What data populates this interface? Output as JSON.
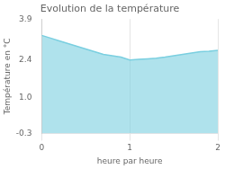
{
  "chart_data": {
    "type": "area",
    "title": "Evolution de la température",
    "x_label": "heure par heure",
    "y_label": "Température en °C",
    "x": [
      0,
      0.1,
      0.2,
      0.3,
      0.4,
      0.5,
      0.6,
      0.7,
      0.8,
      0.9,
      1.0,
      1.1,
      1.2,
      1.3,
      1.4,
      1.5,
      1.6,
      1.7,
      1.8,
      1.9,
      2.0
    ],
    "values": [
      3.3,
      3.2,
      3.1,
      3.0,
      2.9,
      2.8,
      2.7,
      2.6,
      2.55,
      2.5,
      2.4,
      2.42,
      2.44,
      2.46,
      2.5,
      2.55,
      2.6,
      2.65,
      2.7,
      2.72,
      2.75
    ],
    "color": "#7acfe0",
    "xlim": [
      0,
      2
    ],
    "ylim": [
      -0.3,
      3.9
    ],
    "xticks": [
      0,
      1,
      2
    ],
    "yticks": [
      -0.3,
      {
        "value": 1.0,
        "label": "1.0"
      },
      2.4,
      3.9
    ],
    "grid": "x"
  }
}
